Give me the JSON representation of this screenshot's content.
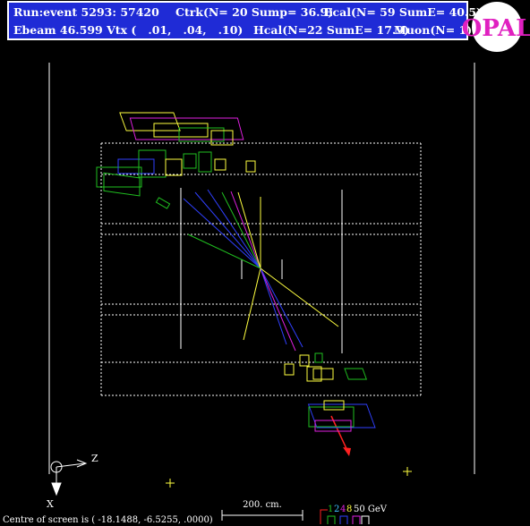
{
  "header": {
    "run_event": "Run:event 5293: 57420",
    "ctrk": "Ctrk(N= 20 Sump= 36.9)",
    "ecal": "Ecal(N= 59 SumE= 40.5)",
    "ebeam_vtx": "Ebeam 46.599 Vtx (   .01,   .04,   .10)",
    "hcal": "Hcal(N=22 SumE= 17.9)",
    "muon": "Muon(N= 1)"
  },
  "logo": "OPAL",
  "axes": {
    "z": "Z",
    "x": "X"
  },
  "scale": "200. cm.",
  "energy_scale": {
    "steps": [
      "1",
      "2",
      "4",
      "8"
    ],
    "unit": "50 GeV"
  },
  "footer": "Centre of screen is ( -18.1488, -6.5255, .0000)"
}
